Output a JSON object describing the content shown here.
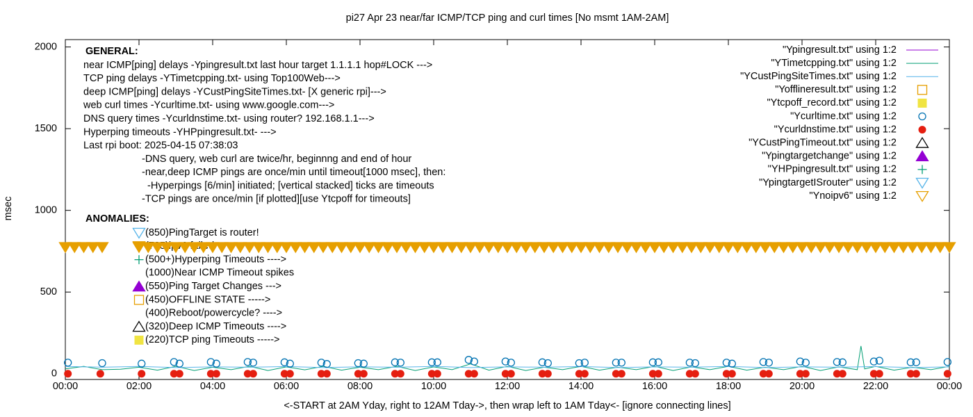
{
  "chart_data": {
    "type": "scatter",
    "title": "pi27 Apr 23  near/far ICMP/TCP ping and curl times [No msmt 1AM-2AM]",
    "x_label": "<-START at 2AM Yday, right to 12AM Tday->, then wrap left to 1AM Tday<- [ignore connecting lines]",
    "y_label": "msec",
    "xlim": [
      0,
      24
    ],
    "ylim": [
      -35,
      2045
    ],
    "xticks": [
      {
        "value": 0,
        "label": "00:00"
      },
      {
        "value": 2,
        "label": "02:00"
      },
      {
        "value": 4,
        "label": "04:00"
      },
      {
        "value": 6,
        "label": "06:00"
      },
      {
        "value": 8,
        "label": "08:00"
      },
      {
        "value": 10,
        "label": "10:00"
      },
      {
        "value": 12,
        "label": "12:00"
      },
      {
        "value": 14,
        "label": "14:00"
      },
      {
        "value": 16,
        "label": "16:00"
      },
      {
        "value": 18,
        "label": "18:00"
      },
      {
        "value": 20,
        "label": "20:00"
      },
      {
        "value": 22,
        "label": "22:00"
      },
      {
        "value": 24,
        "label": "00:00"
      }
    ],
    "yticks": [
      0,
      500,
      1000,
      1500,
      2000
    ],
    "legend": "top-right",
    "general_heading": "GENERAL:",
    "general_lines": [
      "near ICMP[ping] delays -Ypingresult.txt last hour target 1.1.1.1 hop#LOCK --->",
      "TCP ping delays -YTimetcpping.txt- using Top100Web--->",
      "deep ICMP[ping] delays -YCustPingSiteTimes.txt- [X generic rpi]--->",
      "web curl times -Ycurltime.txt- using www.google.com--->",
      "DNS query times -Ycurldnstime.txt- using router? 192.168.1.1--->",
      "Hyperping timeouts -YHPpingresult.txt- --->",
      "Last rpi boot: 2025-04-15 07:38:03"
    ],
    "general_notes": [
      "-DNS query, web curl are twice/hr, beginnng and end of hour",
      "-near,deep ICMP pings are once/min until timeout[1000 msec], then:",
      "  -Hyperpings [6/min] initiated; [vertical stacked] ticks are timeouts",
      "-TCP pings are once/min [if plotted][use Ytcpoff for timeouts]"
    ],
    "anomalies_heading": "ANOMALIES:",
    "anomalies": [
      "(850)PingTarget is router!",
      "(725)ipv6 failed",
      "(500+)Hyperping Timeouts ---->",
      "(1000)Near ICMP Timeout spikes",
      "(550)Ping Target Changes --->",
      "(450)OFFLINE STATE ----->",
      "(400)Reboot/powercycle? ---->",
      "(320)Deep ICMP Timeouts ---->",
      "(220)TCP ping Timeouts ----->"
    ],
    "series": [
      {
        "name": "\"Ypingresult.txt\" using 1:2",
        "color": "#9400d3",
        "marker": "line",
        "x": [],
        "values": []
      },
      {
        "name": "\"YTimetcpping.txt\" using 1:2",
        "color": "#009e73",
        "marker": "line",
        "x": [
          0,
          0.5,
          1,
          1.5,
          2,
          2.5,
          3,
          3.5,
          4,
          4.5,
          5,
          5.5,
          6,
          6.5,
          7,
          7.5,
          8,
          8.5,
          9,
          9.5,
          10,
          10.5,
          11,
          11.5,
          12,
          12.5,
          13,
          13.5,
          14,
          14.5,
          15,
          15.5,
          16,
          16.5,
          17,
          17.5,
          18,
          18.5,
          19,
          19.5,
          20,
          20.5,
          21,
          21.5,
          21.6,
          21.7,
          22,
          22.5,
          23,
          23.5,
          24
        ],
        "values": [
          30,
          45,
          25,
          28,
          40,
          22,
          45,
          20,
          40,
          25,
          45,
          20,
          42,
          24,
          45,
          22,
          40,
          25,
          45,
          20,
          42,
          25,
          60,
          22,
          45,
          20,
          40,
          25,
          45,
          22,
          40,
          25,
          45,
          20,
          42,
          25,
          45,
          22,
          40,
          25,
          45,
          20,
          42,
          25,
          170,
          30,
          45,
          22,
          40,
          25,
          45
        ]
      },
      {
        "name": "\"YCustPingSiteTimes.txt\" using 1:2",
        "color": "#56b4e9",
        "marker": "line",
        "x": [
          0,
          1,
          2,
          3,
          4,
          5,
          6,
          7,
          8,
          9,
          10,
          11,
          12,
          13,
          14,
          15,
          16,
          17,
          18,
          19,
          20,
          21,
          22,
          23,
          24
        ],
        "values": [
          45,
          40,
          45,
          38,
          42,
          40,
          44,
          38,
          42,
          40,
          45,
          38,
          42,
          40,
          44,
          38,
          42,
          40,
          45,
          38,
          42,
          40,
          44,
          38,
          42
        ]
      },
      {
        "name": "\"Yofflineresult.txt\" using 1:2",
        "color": "#e69f00",
        "marker": "square-open",
        "x": [],
        "values": []
      },
      {
        "name": "\"Ytcpoff_record.txt\" using 1:2",
        "color": "#f0e442",
        "marker": "square-filled",
        "x": [],
        "values": []
      },
      {
        "name": "\"Ycurltime.txt\" using 1:2",
        "color": "#0072b2",
        "marker": "circle-open",
        "x": [
          0.07,
          1.0,
          2.07,
          2.95,
          3.1,
          3.95,
          4.1,
          4.95,
          5.1,
          5.95,
          6.1,
          6.95,
          7.1,
          7.95,
          8.1,
          8.95,
          9.1,
          9.95,
          10.1,
          10.95,
          11.1,
          11.95,
          12.1,
          12.95,
          13.1,
          13.95,
          14.1,
          14.95,
          15.1,
          15.95,
          16.1,
          16.95,
          17.1,
          17.95,
          18.1,
          18.95,
          19.1,
          19.95,
          20.1,
          20.95,
          21.1,
          21.95,
          22.1,
          22.95,
          23.1,
          23.95
        ],
        "values": [
          68,
          65,
          62,
          72,
          62,
          72,
          62,
          72,
          68,
          70,
          62,
          68,
          60,
          65,
          62,
          70,
          68,
          70,
          70,
          85,
          75,
          75,
          68,
          70,
          65,
          65,
          68,
          68,
          68,
          70,
          70,
          68,
          65,
          68,
          62,
          72,
          68,
          75,
          68,
          72,
          70,
          75,
          80,
          70,
          70,
          72
        ]
      },
      {
        "name": "\"Ycurldnstime.txt\" using 1:2",
        "color": "#e51e10",
        "marker": "circle-filled",
        "x": [
          0.07,
          0.95,
          2.07,
          2.95,
          3.1,
          3.95,
          4.1,
          4.95,
          5.1,
          5.95,
          6.1,
          6.95,
          7.1,
          7.95,
          8.1,
          8.95,
          9.1,
          9.95,
          10.1,
          10.95,
          11.1,
          11.95,
          12.1,
          12.95,
          13.1,
          13.95,
          14.1,
          14.95,
          15.1,
          15.95,
          16.1,
          16.95,
          17.1,
          17.95,
          18.1,
          18.95,
          19.1,
          19.95,
          20.1,
          20.95,
          21.1,
          21.95,
          22.1,
          22.95,
          23.1,
          23.95
        ],
        "values": [
          0,
          0,
          0,
          0,
          0,
          0,
          0,
          0,
          0,
          0,
          0,
          0,
          0,
          0,
          0,
          0,
          0,
          0,
          0,
          0,
          0,
          0,
          0,
          0,
          0,
          0,
          0,
          0,
          0,
          0,
          0,
          0,
          0,
          0,
          0,
          0,
          0,
          0,
          0,
          0,
          0,
          0,
          0,
          0,
          0,
          0
        ]
      },
      {
        "name": "\"YCustPingTimeout.txt\" using 1:2",
        "color": "#000000",
        "marker": "triangle-open",
        "x": [],
        "values": []
      },
      {
        "name": "\"Ypingtargetchange\" using 1:2",
        "color": "#9400d3",
        "marker": "triangle-filled",
        "x": [],
        "values": []
      },
      {
        "name": "\"YHPpingresult.txt\" using 1:2",
        "color": "#009e73",
        "marker": "plus",
        "x": [],
        "values": []
      },
      {
        "name": "\"YpingtargetISrouter\" using 1:2",
        "color": "#56b4e9",
        "marker": "triangle-down-open",
        "x": [],
        "values": []
      },
      {
        "name": "\"Ynoipv6\" using 1:2",
        "color": "#e69f00",
        "marker": "triangle-down-open",
        "x": [
          0,
          0.25,
          0.5,
          0.75,
          1,
          2,
          2.25,
          2.5,
          2.75,
          3,
          3.25,
          3.5,
          3.75,
          4,
          4.25,
          4.5,
          4.75,
          5,
          5.25,
          5.5,
          5.75,
          6,
          6.25,
          6.5,
          6.75,
          7,
          7.25,
          7.5,
          7.75,
          8,
          8.25,
          8.5,
          8.75,
          9,
          9.25,
          9.5,
          9.75,
          10,
          10.25,
          10.5,
          10.75,
          11,
          11.25,
          11.5,
          11.75,
          12,
          12.25,
          12.5,
          12.75,
          13,
          13.25,
          13.5,
          13.75,
          14,
          14.25,
          14.5,
          14.75,
          15,
          15.25,
          15.5,
          15.75,
          16,
          16.25,
          16.5,
          16.75,
          17,
          17.25,
          17.5,
          17.75,
          18,
          18.25,
          18.5,
          18.75,
          19,
          19.25,
          19.5,
          19.75,
          20,
          20.25,
          20.5,
          20.75,
          21,
          21.25,
          21.5,
          21.75,
          22,
          22.25,
          22.5,
          22.75,
          23,
          23.25,
          23.5,
          23.75,
          24
        ],
        "values": [
          775,
          775,
          775,
          775,
          775,
          775,
          775,
          775,
          775,
          775,
          775,
          775,
          775,
          775,
          775,
          775,
          775,
          775,
          775,
          775,
          775,
          775,
          775,
          775,
          775,
          775,
          775,
          775,
          775,
          775,
          775,
          775,
          775,
          775,
          775,
          775,
          775,
          775,
          775,
          775,
          775,
          775,
          775,
          775,
          775,
          775,
          775,
          775,
          775,
          775,
          775,
          775,
          775,
          775,
          775,
          775,
          775,
          775,
          775,
          775,
          775,
          775,
          775,
          775,
          775,
          775,
          775,
          775,
          775,
          775,
          775,
          775,
          775,
          775,
          775,
          775,
          775,
          775,
          775,
          775,
          775,
          775,
          775,
          775,
          775,
          775,
          775,
          775,
          775,
          775,
          775,
          775,
          775,
          775
        ]
      }
    ]
  }
}
